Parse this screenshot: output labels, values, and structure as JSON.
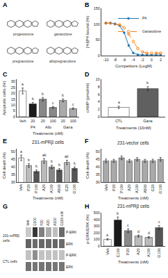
{
  "chart_data": [
    {
      "type": "structures",
      "panel": "A",
      "labels": [
        "progesterone",
        "ganaxolone",
        "pregnanolone",
        "allopregnanolone"
      ]
    },
    {
      "type": "line",
      "panel": "B",
      "xlabel": "Competitors (LogM)",
      "ylabel": "[³H]P4 bound (%)",
      "xlim": [
        -11,
        3
      ],
      "xticks": [
        -10,
        -8,
        -6,
        -4,
        -2,
        0,
        2
      ],
      "ylim": [
        0,
        150
      ],
      "yticks": [
        0,
        50,
        100,
        150
      ],
      "grid": false,
      "legend": "upper right",
      "series": [
        {
          "name": "P4",
          "marker": "circle",
          "line_style": "solid",
          "x": [
            -10,
            -9,
            -8,
            -7,
            -6,
            -5,
            -4,
            -3,
            -2,
            -1,
            0,
            1,
            2
          ],
          "values": [
            103,
            103,
            101,
            95,
            73,
            32,
            8,
            3,
            2,
            2,
            2,
            2,
            2
          ]
        },
        {
          "name": "Ganaxolone",
          "marker": "circle-open",
          "line_style": "dashed",
          "x": [
            -10,
            -9,
            -8,
            -7,
            -6,
            -5,
            -4,
            -3,
            -2,
            -1,
            0,
            1,
            2
          ],
          "values": [
            103,
            103,
            100,
            98,
            88,
            68,
            45,
            22,
            12,
            8,
            8,
            8,
            8
          ]
        }
      ]
    },
    {
      "type": "bar",
      "panel": "C",
      "xlabel": "Treatments (nM)",
      "ylabel": "Apoptotic cells (%)",
      "categories": [
        "Veh",
        "20",
        "20",
        "100",
        "20",
        "100"
      ],
      "values": [
        22,
        11,
        15,
        8,
        14,
        7
      ],
      "errors": [
        2.5,
        1.2,
        1.5,
        0.8,
        1.3,
        0.7
      ],
      "colors": [
        "#FFFFFF",
        "#1a1a1a",
        "#888888",
        "#888888",
        "#AAAAAA",
        "#AAAAAA"
      ],
      "ylim": [
        0,
        32
      ],
      "yticks": [
        0,
        5,
        10,
        15,
        20,
        25,
        30
      ],
      "grid": false,
      "annotations": [
        {
          "text": "a",
          "x": 0
        },
        {
          "text": "b",
          "x": 1
        },
        {
          "text": "b",
          "x": 2
        },
        {
          "text": "c",
          "x": 3
        },
        {
          "text": "b",
          "x": 4
        },
        {
          "text": "c",
          "x": 5
        }
      ],
      "group_labels": [
        {
          "text": "P4",
          "x": 1
        },
        {
          "text": "Allo",
          "x": 2.5
        },
        {
          "text": "Gana",
          "x": 4.5
        }
      ]
    },
    {
      "type": "bar",
      "panel": "D",
      "xlabel": "Treatments (10nM)",
      "ylabel": "cAMP (pmol/ml)",
      "categories": [
        "CTL",
        "Gana"
      ],
      "values": [
        2.5,
        7.5
      ],
      "errors": [
        0.3,
        0.5
      ],
      "colors": [
        "#FFFFFF",
        "#606060"
      ],
      "ylim": [
        0,
        10
      ],
      "yticks": [
        0,
        2,
        4,
        6,
        8,
        10
      ],
      "grid": false,
      "annotations": [
        {
          "text": "a",
          "x": 0
        },
        {
          "text": "b",
          "x": 1
        }
      ]
    },
    {
      "type": "bar",
      "panel": "E",
      "title": "231-mPRβ cells",
      "xlabel": "Treatments (nM)",
      "ylabel": "Cell death (%)",
      "categories": [
        "Veh",
        "P20",
        "P100",
        "A20",
        "A100",
        "A500",
        "G20",
        "G100"
      ],
      "values": [
        46,
        41,
        37,
        44,
        40,
        38,
        43,
        39
      ],
      "errors": [
        1.8,
        1.2,
        1.0,
        1.5,
        1.1,
        1.0,
        1.4,
        1.0
      ],
      "colors": [
        "#FFFFFF",
        "#BBBBBB",
        "#555555",
        "#BBBBBB",
        "#888888",
        "#555555",
        "#BBBBBB",
        "#555555"
      ],
      "ylim": [
        30,
        52
      ],
      "yticks": [
        30,
        35,
        40,
        45,
        50
      ],
      "grid": false,
      "annotations": [
        {
          "text": "a",
          "x": 0
        },
        {
          "text": "b",
          "x": 1
        },
        {
          "text": "b",
          "x": 2
        },
        {
          "text": "ab",
          "x": 3
        },
        {
          "text": "b",
          "x": 4
        },
        {
          "text": "b",
          "x": 5
        },
        {
          "text": "ab",
          "x": 6
        },
        {
          "text": "b",
          "x": 7
        }
      ]
    },
    {
      "type": "bar",
      "panel": "F",
      "title": "231-vector cells",
      "xlabel": "Treatments (nM)",
      "ylabel": "Cell death (%)",
      "categories": [
        "Veh",
        "P20",
        "P100",
        "A20",
        "A100",
        "A500",
        "G20",
        "G100"
      ],
      "values": [
        44,
        44,
        46,
        44,
        45,
        44,
        44,
        45
      ],
      "errors": [
        1.2,
        1.0,
        1.2,
        1.0,
        1.1,
        1.0,
        1.1,
        1.2
      ],
      "colors": [
        "#AAAAAA",
        "#AAAAAA",
        "#AAAAAA",
        "#AAAAAA",
        "#AAAAAA",
        "#AAAAAA",
        "#AAAAAA",
        "#AAAAAA"
      ],
      "ylim": [
        30,
        52
      ],
      "yticks": [
        30,
        35,
        40,
        45,
        50
      ],
      "grid": false
    },
    {
      "type": "heatmap",
      "panel": "G",
      "categories": [
        "Veh",
        "E100",
        "P20",
        "A20",
        "A100",
        "G100 nM"
      ],
      "rows": [
        "P-ERK",
        "ERK",
        "P-ERK",
        "ERK"
      ],
      "cells": [
        [
          0.25,
          0.92,
          0.58,
          0.38,
          0.3,
          0.68
        ],
        [
          0.72,
          0.68,
          0.7,
          0.69,
          0.7,
          0.68
        ],
        [
          0.28,
          0.52,
          0.28,
          0.28,
          0.28,
          0.28
        ],
        [
          0.65,
          0.63,
          0.64,
          0.65,
          0.63,
          0.63
        ]
      ],
      "zlim": [
        0,
        1
      ],
      "annotations": [
        {
          "text": "231-mPRβ\ncells",
          "y": 0.5
        },
        {
          "text": "CTL cells",
          "y": 2.5
        }
      ]
    },
    {
      "type": "bar",
      "panel": "H",
      "title": "231-mPRβ cells",
      "xlabel": "Treatments (nM)",
      "ylabel": "p-ERK/ERK (%)",
      "categories": [
        "Veh",
        "E100",
        "P20",
        "A20",
        "A100",
        "G100"
      ],
      "values": [
        100,
        390,
        230,
        150,
        130,
        275
      ],
      "errors": [
        10,
        45,
        28,
        15,
        12,
        30
      ],
      "colors": [
        "#FFFFFF",
        "#1a1a1a",
        "#888888",
        "#BBBBBB",
        "#BBBBBB",
        "#555555"
      ],
      "ylim": [
        0,
        500
      ],
      "yticks": [
        0,
        100,
        200,
        300,
        400,
        500
      ],
      "grid": false,
      "annotations": [
        {
          "text": "a",
          "x": 0
        },
        {
          "text": "b",
          "x": 1
        },
        {
          "text": "c",
          "x": 2
        },
        {
          "text": "d",
          "x": 3
        },
        {
          "text": "d",
          "x": 4
        },
        {
          "text": "c",
          "x": 5
        }
      ]
    }
  ]
}
